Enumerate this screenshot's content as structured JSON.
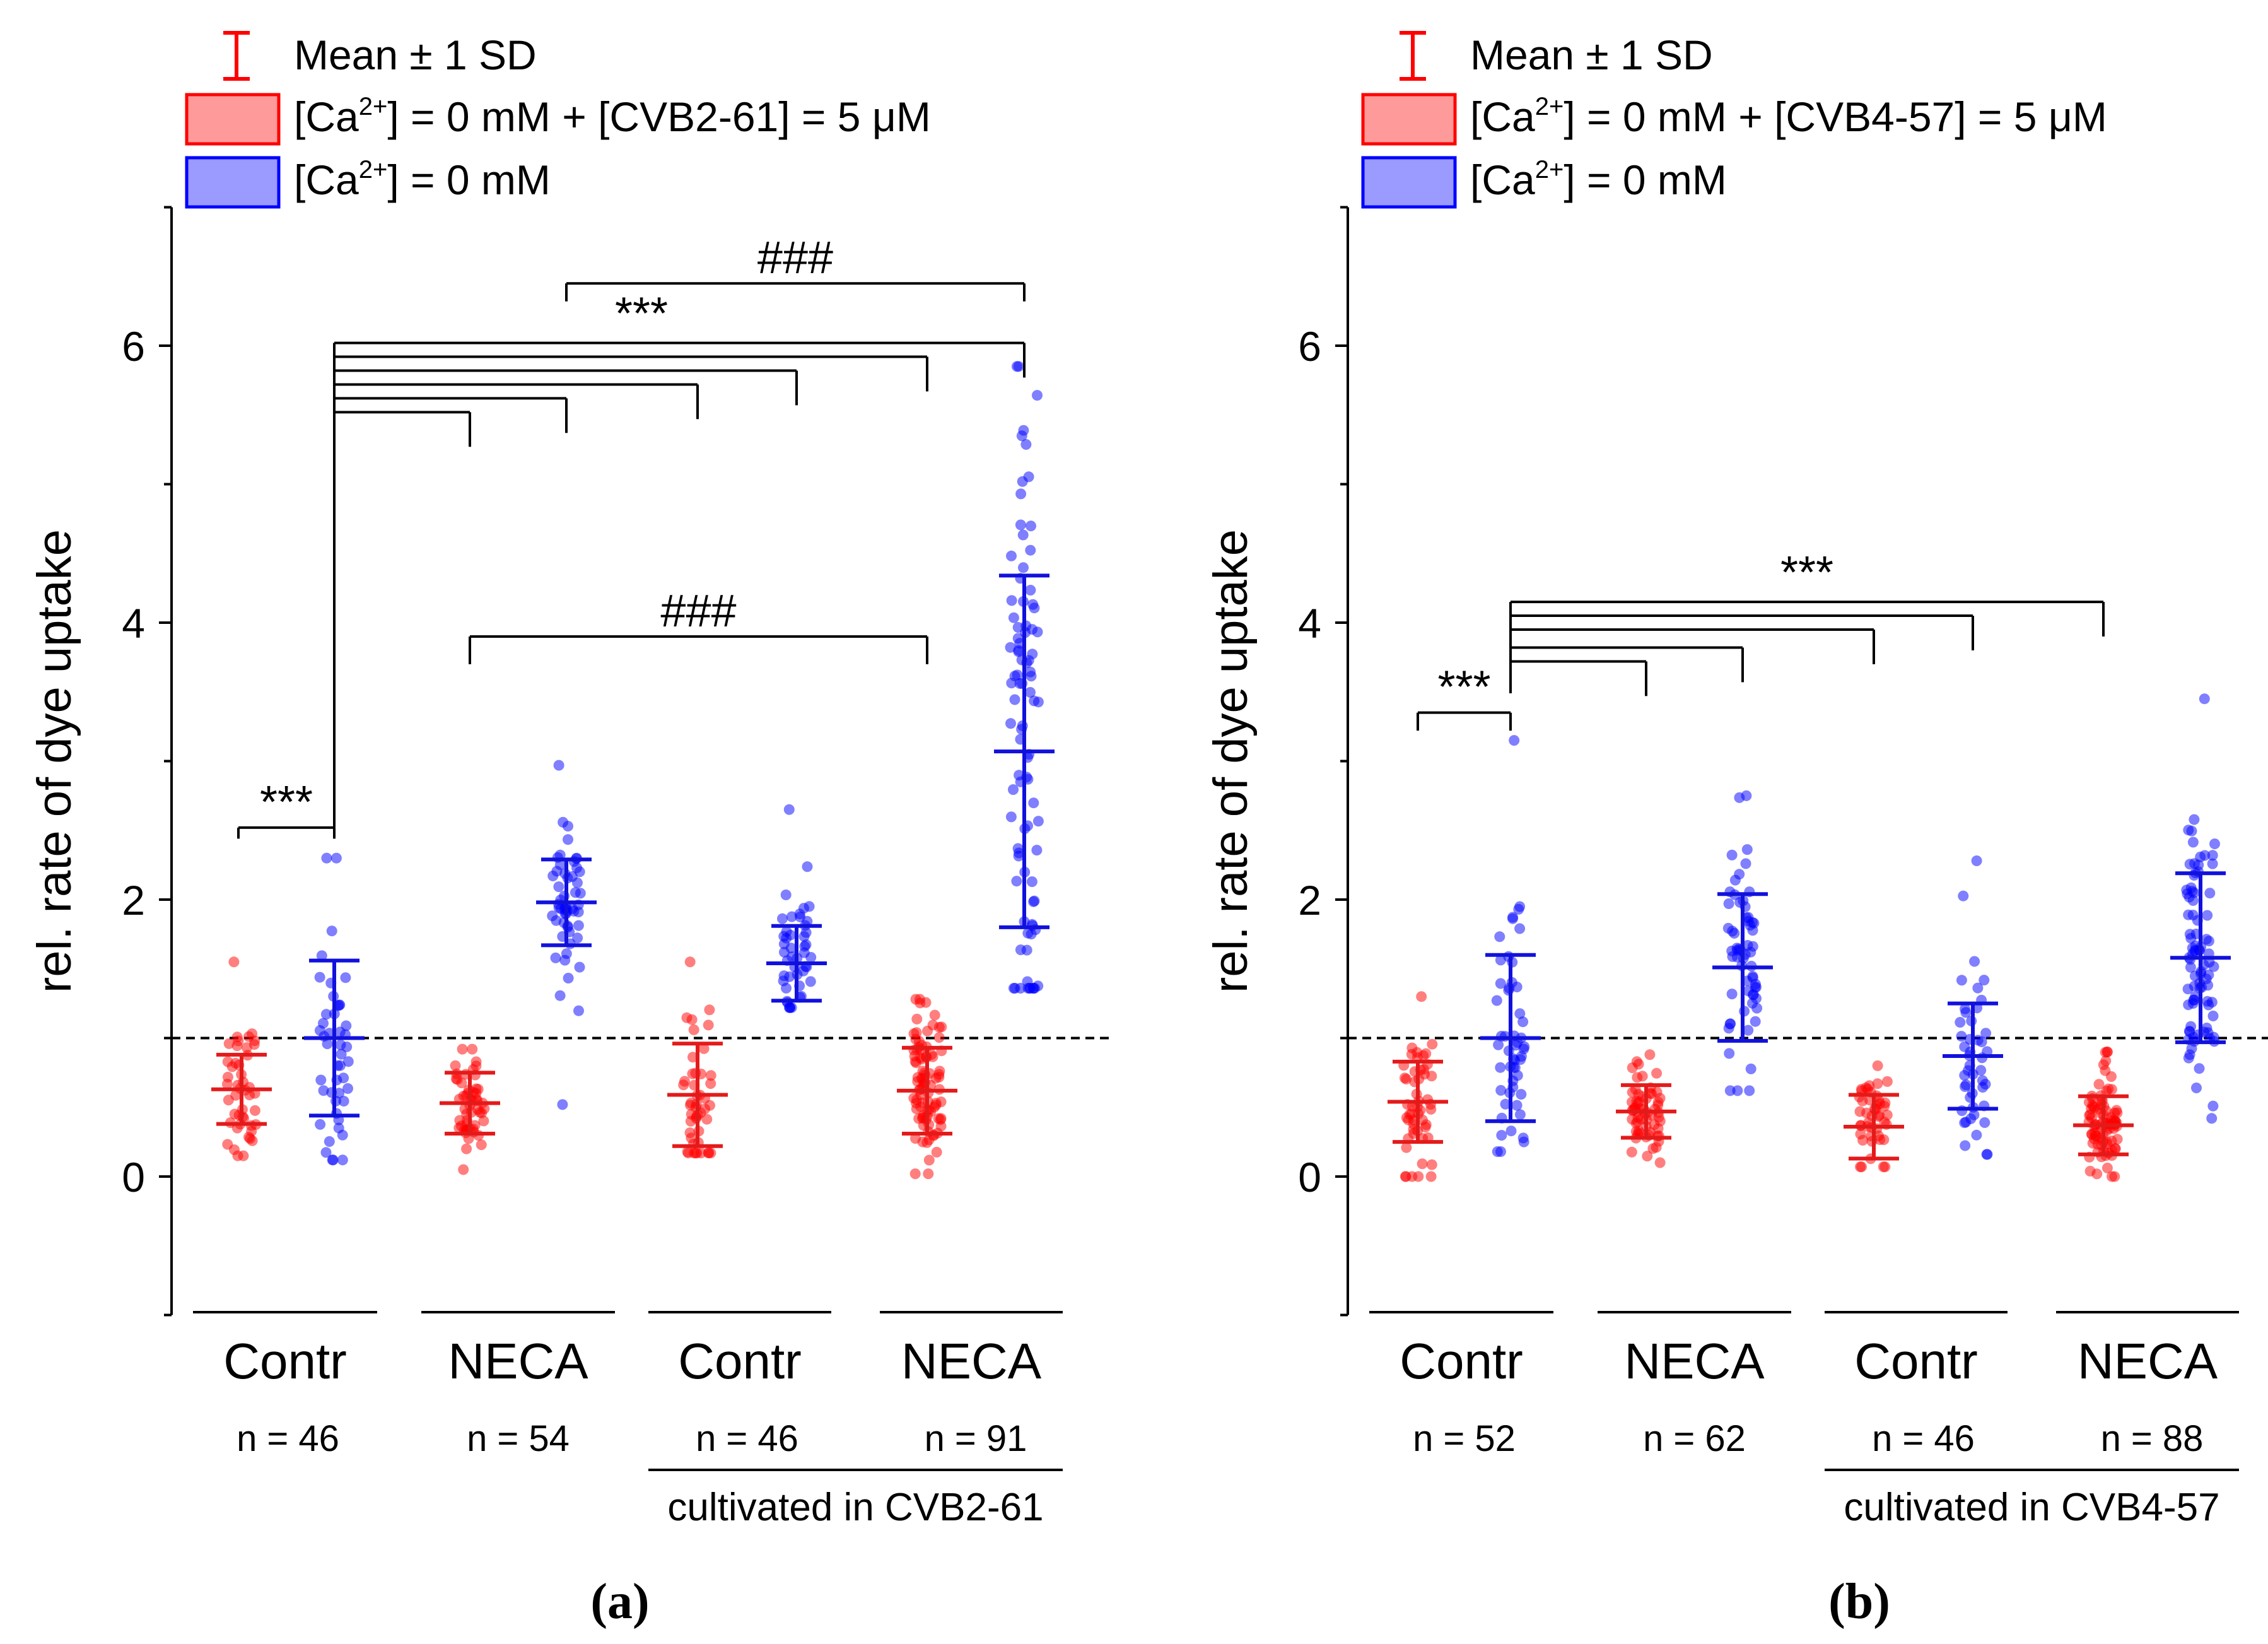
{
  "colors": {
    "red": "#ff0000",
    "red_fill": "#ff9a9a",
    "blue": "#0000ff",
    "blue_fill": "#9a9aff",
    "mean_red": "#e41a1a",
    "mean_blue": "#1111dd"
  },
  "chart_data": [
    {
      "panel_label": "(a)",
      "type": "scatter",
      "ylabel": "rel. rate of dye uptake",
      "ylim": [
        -1,
        7
      ],
      "yticks": [
        "0",
        "2",
        "4",
        "6"
      ],
      "reference_line_y": 1,
      "legend": {
        "sd_label": "Mean ± 1 SD",
        "red_label": {
          "pre": "[Ca",
          "sup": "2+",
          "post": "] = 0 mM + [CVB2-61] = 5 μM"
        },
        "blue_label": {
          "pre": "[Ca",
          "sup": "2+",
          "post": "] = 0 mM"
        }
      },
      "groups": [
        {
          "name": "Contr",
          "n_label": "n = 46",
          "red": {
            "mean": 0.63,
            "sd": 0.25,
            "min": 0.15,
            "max": 1.55
          },
          "blue": {
            "mean": 1.0,
            "sd": 0.56,
            "min": 0.12,
            "max": 2.3
          }
        },
        {
          "name": "NECA",
          "n_label": "n = 54",
          "red": {
            "mean": 0.53,
            "sd": 0.22,
            "min": 0.05,
            "max": 0.92
          },
          "blue": {
            "mean": 1.98,
            "sd": 0.31,
            "min": 0.52,
            "max": 2.97
          }
        },
        {
          "name": "Contr",
          "n_label": "n = 46",
          "red": {
            "mean": 0.59,
            "sd": 0.37,
            "min": 0.17,
            "max": 1.55
          },
          "blue": {
            "mean": 1.54,
            "sd": 0.27,
            "min": 1.22,
            "max": 2.65
          }
        },
        {
          "name": "NECA",
          "n_label": "n = 91",
          "red": {
            "mean": 0.62,
            "sd": 0.31,
            "min": 0.02,
            "max": 1.28
          },
          "blue": {
            "mean": 3.07,
            "sd": 1.27,
            "min": 1.36,
            "max": 5.85
          }
        }
      ],
      "subgroup_label": "cultivated in CVB2-61",
      "significance": [
        {
          "text": "***",
          "y": 2.52,
          "from": "g1red",
          "to": [
            "g1blue"
          ],
          "drop": 0.08
        },
        {
          "text": "***",
          "y": 6.02,
          "from": "g1blue",
          "targets": [
            {
              "to": "g2red",
              "y": 5.52
            },
            {
              "to": "g2blue",
              "y": 5.62
            },
            {
              "to": "g3red",
              "y": 5.72
            },
            {
              "to": "g3blue",
              "y": 5.82
            },
            {
              "to": "g4red",
              "y": 5.92
            },
            {
              "to": "g4blue",
              "y": 6.02
            }
          ]
        },
        {
          "text": "###",
          "y": 6.45,
          "from": "g2blue",
          "to": [
            "g4blue"
          ],
          "drop": 0.13
        },
        {
          "text": "###",
          "y": 3.9,
          "from": "g2red",
          "to": [
            "g4red"
          ],
          "drop": 0.2
        }
      ]
    },
    {
      "panel_label": "(b)",
      "type": "scatter",
      "ylabel": "rel. rate of dye uptake",
      "ylim": [
        -1,
        7
      ],
      "yticks": [
        "0",
        "2",
        "4",
        "6"
      ],
      "reference_line_y": 1,
      "legend": {
        "sd_label": "Mean ± 1 SD",
        "red_label": {
          "pre": "[Ca",
          "sup": "2+",
          "post": "] = 0 mM + [CVB4-57] = 5 μM"
        },
        "blue_label": {
          "pre": "[Ca",
          "sup": "2+",
          "post": "] = 0 mM"
        }
      },
      "groups": [
        {
          "name": "Contr",
          "n_label": "n = 52",
          "red": {
            "mean": 0.54,
            "sd": 0.29,
            "min": 0.0,
            "max": 1.3
          },
          "blue": {
            "mean": 1.0,
            "sd": 0.6,
            "min": 0.18,
            "max": 3.15
          }
        },
        {
          "name": "NECA",
          "n_label": "n = 62",
          "red": {
            "mean": 0.47,
            "sd": 0.19,
            "min": 0.1,
            "max": 0.88
          },
          "blue": {
            "mean": 1.51,
            "sd": 0.53,
            "min": 0.62,
            "max": 2.75
          }
        },
        {
          "name": "Contr",
          "n_label": "n = 46",
          "red": {
            "mean": 0.36,
            "sd": 0.23,
            "min": 0.07,
            "max": 0.8
          },
          "blue": {
            "mean": 0.87,
            "sd": 0.38,
            "min": 0.16,
            "max": 2.28
          }
        },
        {
          "name": "NECA",
          "n_label": "n = 88",
          "red": {
            "mean": 0.37,
            "sd": 0.21,
            "min": 0.0,
            "max": 0.9
          },
          "blue": {
            "mean": 1.58,
            "sd": 0.61,
            "min": 0.42,
            "max": 3.45
          }
        }
      ],
      "subgroup_label": "cultivated in CVB4-57",
      "significance": [
        {
          "text": "***",
          "y": 3.35,
          "from": "g1red",
          "to": [
            "g1blue"
          ],
          "drop": 0.13
        },
        {
          "text": "***",
          "y": 4.15,
          "from": "g1blue",
          "targets": [
            {
              "to": "g2red",
              "y": 3.72
            },
            {
              "to": "g2blue",
              "y": 3.82
            },
            {
              "to": "g3red",
              "y": 3.95
            },
            {
              "to": "g3blue",
              "y": 4.05
            },
            {
              "to": "g4red",
              "y": 4.15
            }
          ]
        }
      ]
    }
  ]
}
